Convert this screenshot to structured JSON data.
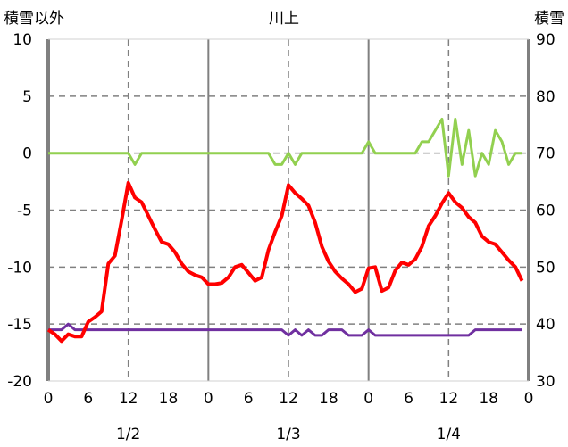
{
  "chart_data": {
    "type": "line",
    "title": "川上",
    "ylabel_left": "積雪以外",
    "ylabel_right": "積雪",
    "ylim_left": [
      -20,
      10
    ],
    "ylim_right": [
      30,
      90
    ],
    "yticks_left": [
      10,
      5,
      0,
      -5,
      -10,
      -15,
      -20
    ],
    "yticks_right": [
      90,
      80,
      70,
      60,
      50,
      40,
      30
    ],
    "xlim_hours": [
      0,
      72
    ],
    "xtick_labels": [
      "0",
      "6",
      "12",
      "18",
      "0",
      "6",
      "12",
      "18",
      "0",
      "6",
      "12",
      "18",
      "0"
    ],
    "date_labels": [
      "1/2",
      "1/3",
      "1/4"
    ],
    "grid": true,
    "colors": {
      "temperature": "#ff0000",
      "other": "#92d050",
      "snow": "#7030a0",
      "grid": "#808080"
    },
    "series": [
      {
        "name": "temperature",
        "axis": "left",
        "values": [
          -15.5,
          -15.9,
          -16.5,
          -15.9,
          -16.1,
          -16.1,
          -14.8,
          -14.4,
          -13.9,
          -9.7,
          -9.0,
          -5.9,
          -2.6,
          -3.9,
          -4.3,
          -5.5,
          -6.7,
          -7.8,
          -8.0,
          -8.7,
          -9.7,
          -10.4,
          -10.7,
          -10.9,
          -11.5,
          -11.5,
          -11.4,
          -10.9,
          -10.0,
          -9.8,
          -10.5,
          -11.2,
          -10.9,
          -8.5,
          -6.9,
          -5.5,
          -2.8,
          -3.5,
          -4.0,
          -4.6,
          -6.1,
          -8.2,
          -9.5,
          -10.4,
          -11.0,
          -11.5,
          -12.2,
          -11.9,
          -10.1,
          -10.0,
          -12.1,
          -11.8,
          -10.3,
          -9.6,
          -9.8,
          -9.3,
          -8.2,
          -6.4,
          -5.5,
          -4.4,
          -3.5,
          -4.3,
          -4.8,
          -5.6,
          -6.1,
          -7.3,
          -7.8,
          -8.0,
          -8.7,
          -9.4,
          -10.0,
          -11.2
        ]
      },
      {
        "name": "other",
        "axis": "left",
        "values": [
          0,
          0,
          0,
          0,
          0,
          0,
          0,
          0,
          0,
          0,
          0,
          0,
          0,
          -1,
          0,
          0,
          0,
          0,
          0,
          0,
          0,
          0,
          0,
          0,
          0,
          0,
          0,
          0,
          0,
          0,
          0,
          0,
          0,
          0,
          -1,
          -1,
          0,
          -1,
          0,
          0,
          0,
          0,
          0,
          0,
          0,
          0,
          0,
          0,
          1,
          0,
          0,
          0,
          0,
          0,
          0,
          0,
          1,
          1,
          2,
          3,
          -2,
          3,
          -1,
          2,
          -2,
          0,
          -1,
          2,
          1,
          -1,
          0,
          0
        ]
      },
      {
        "name": "snow",
        "axis": "right",
        "values": [
          39,
          39,
          39,
          40,
          39,
          39,
          39,
          39,
          39,
          39,
          39,
          39,
          39,
          39,
          39,
          39,
          39,
          39,
          39,
          39,
          39,
          39,
          39,
          39,
          39,
          39,
          39,
          39,
          39,
          39,
          39,
          39,
          39,
          39,
          39,
          39,
          38,
          39,
          38,
          39,
          38,
          38,
          39,
          39,
          39,
          38,
          38,
          38,
          39,
          38,
          38,
          38,
          38,
          38,
          38,
          38,
          38,
          38,
          38,
          38,
          38,
          38,
          38,
          38,
          39,
          39,
          39,
          39,
          39,
          39,
          39,
          39
        ]
      }
    ]
  }
}
